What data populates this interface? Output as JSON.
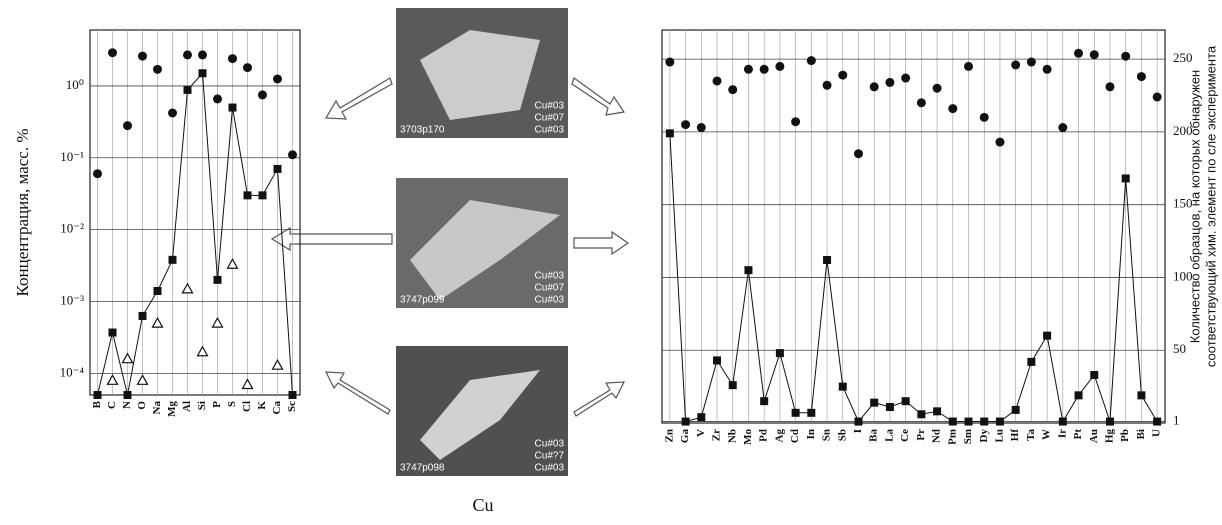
{
  "chart_data": [
    {
      "type": "scatter-line",
      "ylabel": "Концентрация, масс. %",
      "log_y": true,
      "grid": true,
      "color": "#111111",
      "categories": [
        "B",
        "C",
        "N",
        "O",
        "Na",
        "Mg",
        "Al",
        "Si",
        "P",
        "S",
        "Cl",
        "K",
        "Ca",
        "Sc"
      ],
      "ylim": [
        5e-05,
        6
      ],
      "yticks": [
        {
          "value": 1,
          "label": "10⁰"
        },
        {
          "value": 0.1,
          "label": "10⁻¹"
        },
        {
          "value": 0.01,
          "label": "10⁻²"
        },
        {
          "value": 0.001,
          "label": "10⁻³"
        },
        {
          "value": 0.0001,
          "label": "10⁻⁴"
        }
      ],
      "series": [
        {
          "marker": "circle",
          "values": [
            0.06,
            2.9,
            0.28,
            2.6,
            1.7,
            0.42,
            2.7,
            2.7,
            0.66,
            2.4,
            1.8,
            0.75,
            1.25,
            0.11
          ]
        },
        {
          "marker": "square",
          "line": true,
          "values": [
            5e-05,
            0.00037,
            5e-05,
            0.00063,
            0.0014,
            0.0038,
            0.88,
            1.5,
            0.002,
            0.5,
            0.03,
            0.03,
            0.07,
            5e-05
          ]
        },
        {
          "marker": "triangle",
          "values": [
            null,
            8e-05,
            0.00016,
            8e-05,
            0.0005,
            null,
            0.0015,
            0.0002,
            0.0005,
            0.0033,
            7e-05,
            null,
            0.00013,
            null
          ]
        }
      ]
    },
    {
      "type": "scatter-line",
      "ylabel": [
        "Количество образцов, на которых обнаружен",
        "соответствующий хим. элемент по сле эксперимента"
      ],
      "grid": true,
      "color": "#111111",
      "categories": [
        "Zn",
        "Ga",
        "V",
        "Zr",
        "Nb",
        "Mo",
        "Pd",
        "Ag",
        "Cd",
        "In",
        "Sn",
        "Sb",
        "I",
        "Ba",
        "La",
        "Ce",
        "Pr",
        "Nd",
        "Pm",
        "Sm",
        "Dy",
        "Lu",
        "Hf",
        "Ta",
        "W",
        "Ir",
        "Pt",
        "Au",
        "Hg",
        "Pb",
        "Bi",
        "U"
      ],
      "ylim": [
        0,
        270
      ],
      "yticks": [
        1,
        50,
        100,
        150,
        200,
        250
      ],
      "series": [
        {
          "marker": "circle",
          "values": [
            248,
            205,
            203,
            235,
            229,
            243,
            243,
            245,
            207,
            249,
            232,
            239,
            185,
            231,
            234,
            237,
            220,
            230,
            216,
            245,
            210,
            193,
            246,
            248,
            243,
            203,
            254,
            253,
            231,
            252,
            238,
            224
          ]
        },
        {
          "marker": "square",
          "line": true,
          "values": [
            199,
            1,
            4,
            43,
            26,
            105,
            15,
            48,
            7,
            7,
            112,
            25,
            1,
            14,
            11,
            15,
            6,
            8,
            1,
            1,
            1,
            1,
            9,
            42,
            60,
            1,
            19,
            33,
            1,
            168,
            19,
            1
          ]
        }
      ]
    }
  ],
  "images": [
    {
      "caption": "3703p170",
      "labels": [
        "Cu#03",
        "Cu#07",
        "Cu#03"
      ]
    },
    {
      "caption": "3747p099",
      "labels": [
        "Cu#03",
        "Cu#07",
        "Cu#03"
      ]
    },
    {
      "caption": "3747p098",
      "labels": [
        "Cu#03",
        "Cu#?7",
        "Cu#03"
      ]
    }
  ],
  "element": "Cu"
}
